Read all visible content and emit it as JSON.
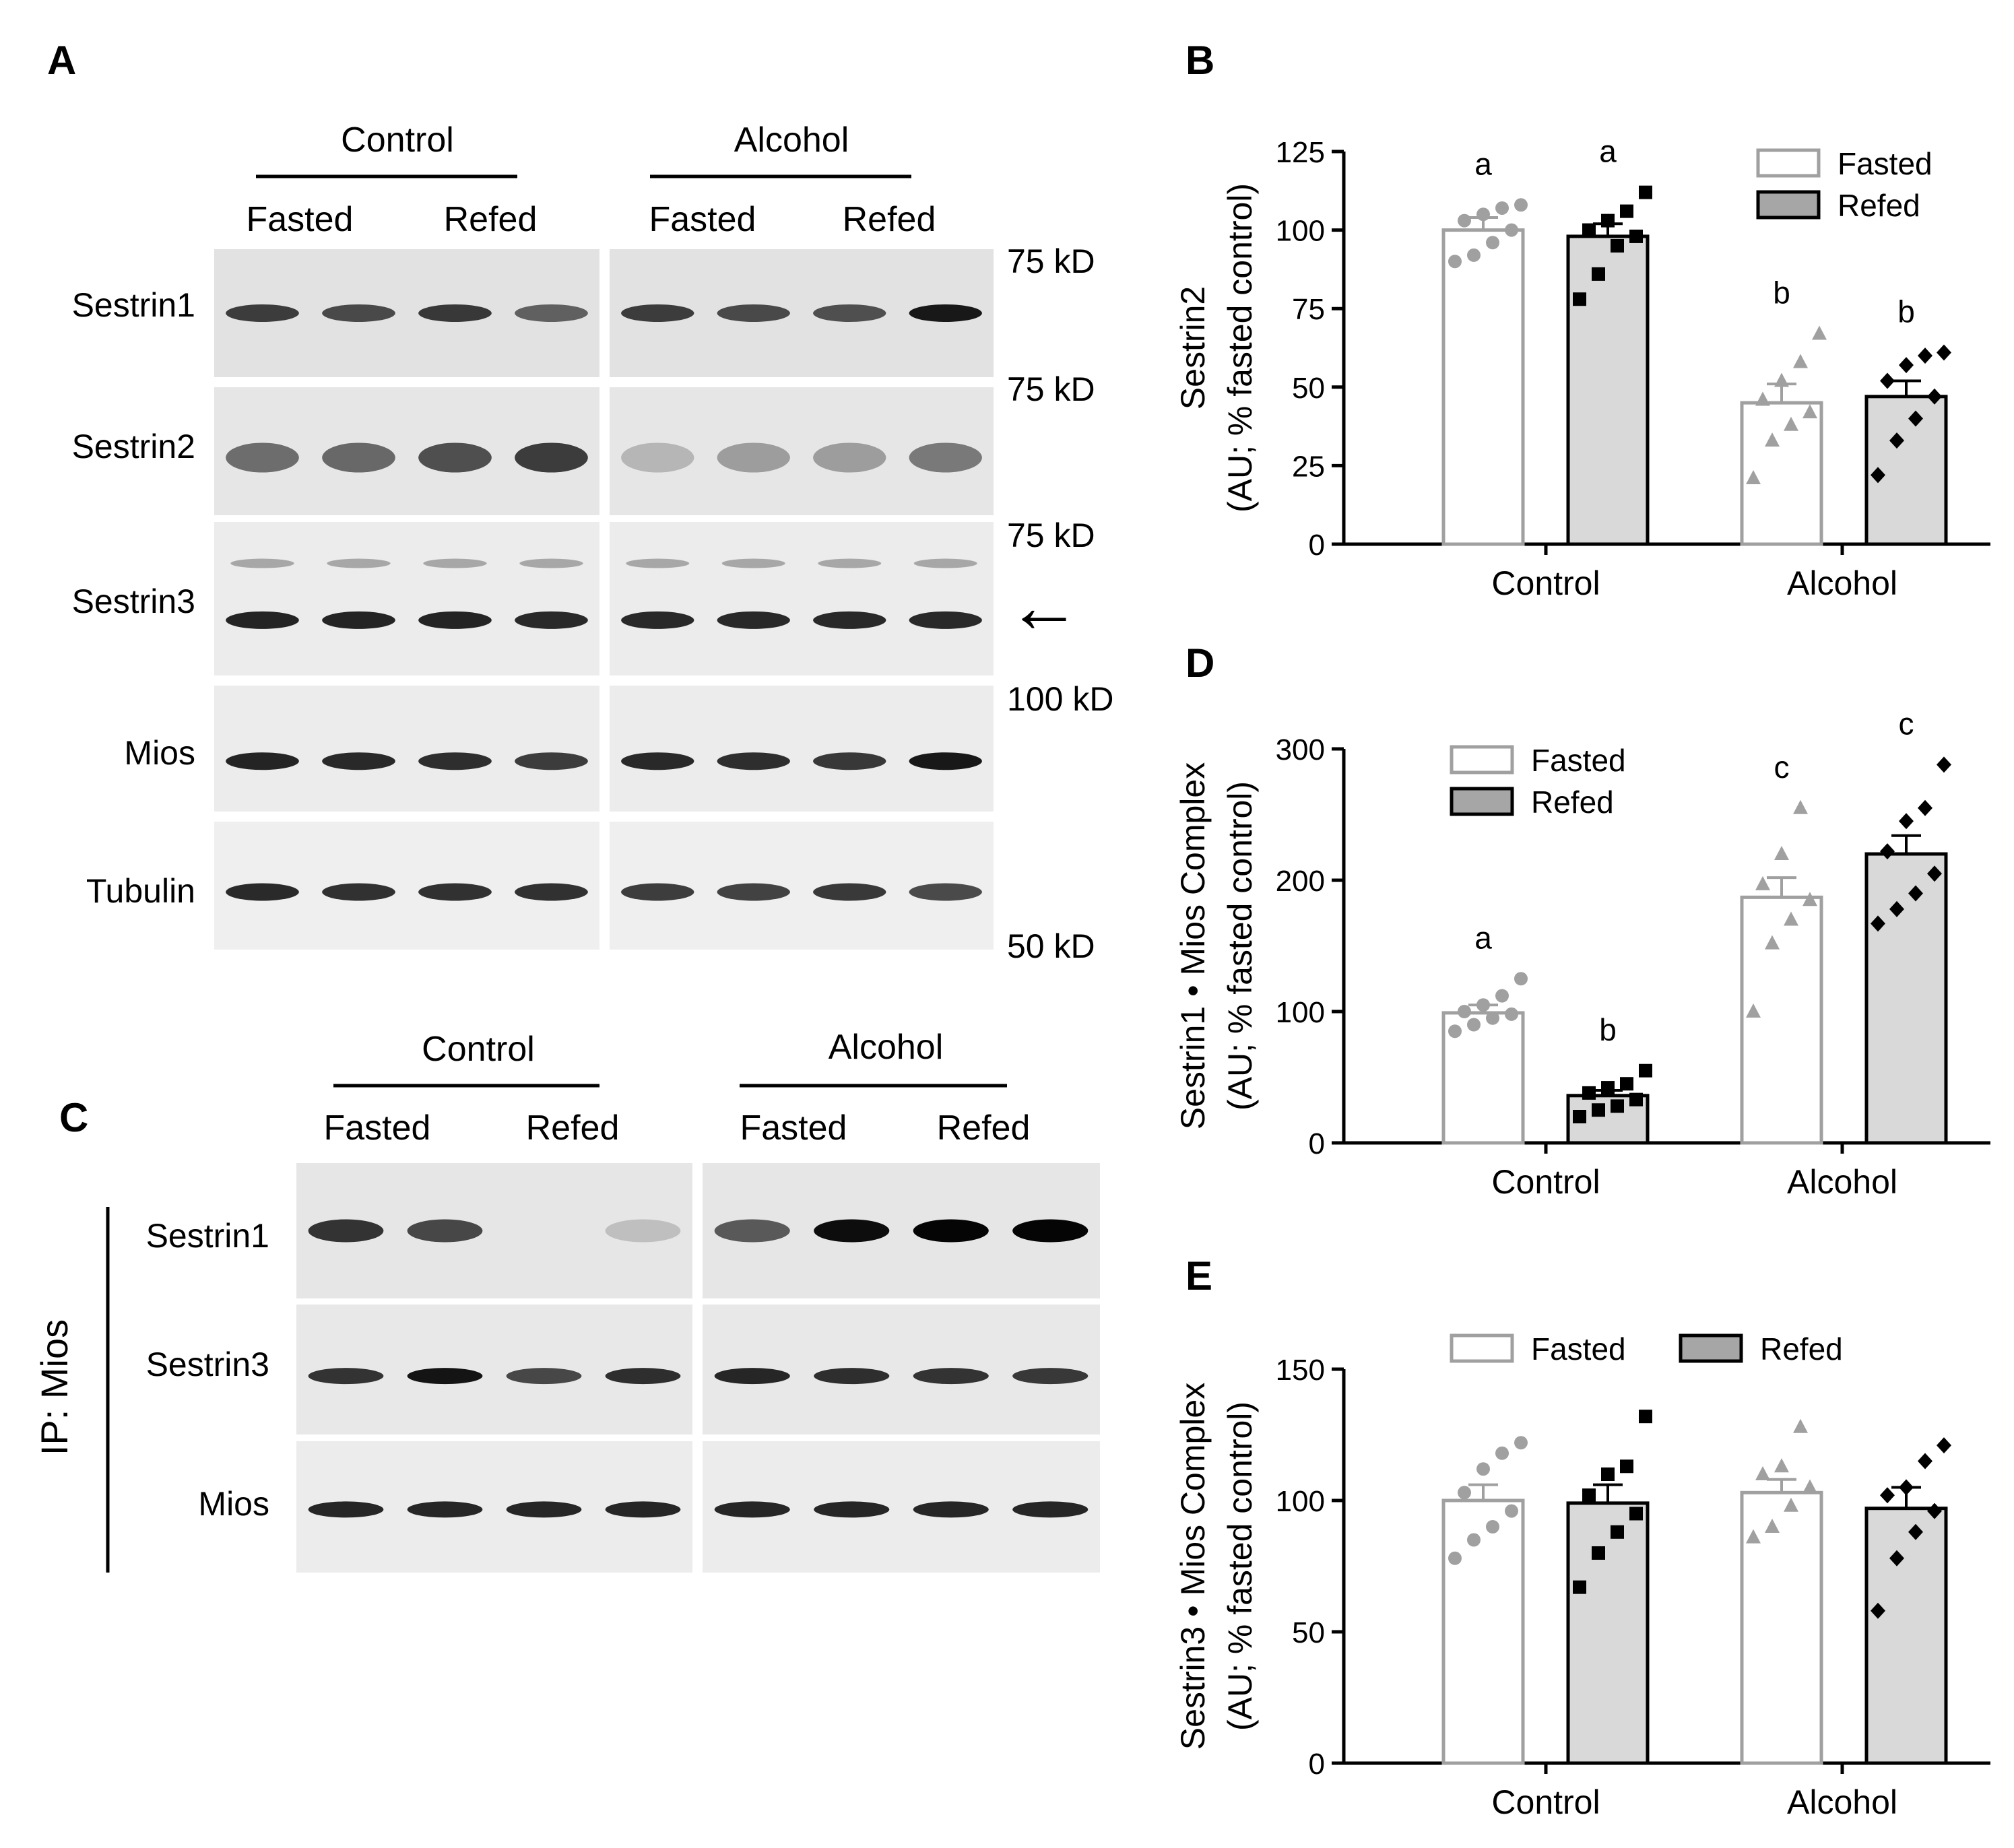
{
  "panel_labels": {
    "A": "A",
    "B": "B",
    "C": "C",
    "D": "D",
    "E": "E"
  },
  "blot_A": {
    "groups": [
      "Control",
      "Alcohol"
    ],
    "conditions": [
      "Fasted",
      "Refed",
      "Fasted",
      "Refed"
    ],
    "rows": [
      "Sestrin1",
      "Sestrin2",
      "Sestrin3",
      "Mios",
      "Tubulin"
    ],
    "markers": [
      "75 kD",
      "75 kD",
      "75 kD",
      "100 kD",
      "50 kD"
    ],
    "arrow": "←",
    "band_intensity": [
      [
        0.8,
        0.75,
        0.82,
        0.65,
        0.8,
        0.75,
        0.72,
        0.95
      ],
      [
        0.6,
        0.62,
        0.72,
        0.8,
        0.3,
        0.4,
        0.4,
        0.55
      ],
      [
        0.9,
        0.9,
        0.9,
        0.88,
        0.88,
        0.88,
        0.88,
        0.88
      ],
      [
        0.9,
        0.88,
        0.86,
        0.8,
        0.88,
        0.86,
        0.82,
        0.95
      ],
      [
        0.88,
        0.85,
        0.85,
        0.85,
        0.8,
        0.78,
        0.82,
        0.75
      ]
    ]
  },
  "blot_C": {
    "groups": [
      "Control",
      "Alcohol"
    ],
    "conditions": [
      "Fasted",
      "Refed",
      "Fasted",
      "Refed"
    ],
    "rows": [
      "Sestrin1",
      "Sestrin3",
      "Mios"
    ],
    "side_label": "IP: Mios",
    "band_intensity": [
      [
        0.8,
        0.72,
        0.1,
        0.25,
        0.65,
        0.95,
        0.98,
        0.98
      ],
      [
        0.8,
        0.92,
        0.72,
        0.82,
        0.85,
        0.82,
        0.8,
        0.78
      ],
      [
        0.85,
        0.85,
        0.85,
        0.85,
        0.85,
        0.85,
        0.85,
        0.85
      ]
    ]
  },
  "legend": {
    "fasted": "Fasted",
    "refed": "Refed"
  },
  "colors": {
    "fasted_fill": "#ffffff",
    "fasted_edge": "#a0a0a0",
    "refed_fill": "#d9d9d9",
    "refed_edge": "#000000",
    "fasted_points": "#a0a0a0",
    "refed_points": "#000000"
  },
  "chart_data": [
    {
      "panel": "B",
      "type": "bar",
      "categories": [
        "Control",
        "Alcohol"
      ],
      "ylabel": [
        "Sestrin2",
        "(AU; % fasted control)"
      ],
      "ylim": [
        0,
        125
      ],
      "yticks": [
        "0",
        "25",
        "50",
        "75",
        "100",
        "125"
      ],
      "legend_position": "top-right",
      "series": [
        {
          "name": "Fasted",
          "values": [
            100,
            45
          ],
          "sem": [
            4,
            6
          ],
          "letters": [
            "a",
            "b"
          ],
          "points": [
            [
              90,
              92,
              96,
              100,
              103,
              105,
              107,
              108
            ],
            [
              21,
              33,
              38,
              42,
              46,
              52,
              58,
              67
            ]
          ],
          "marker": "circle-triangle"
        },
        {
          "name": "Refed",
          "values": [
            98,
            47
          ],
          "sem": [
            4,
            5
          ],
          "letters": [
            "a",
            "b"
          ],
          "points": [
            [
              78,
              86,
              95,
              98,
              100,
              103,
              106,
              112
            ],
            [
              22,
              33,
              40,
              47,
              52,
              57,
              60,
              61
            ]
          ],
          "marker": "square-diamond"
        }
      ]
    },
    {
      "panel": "D",
      "type": "bar",
      "categories": [
        "Control",
        "Alcohol"
      ],
      "ylabel": [
        "Sestrin1 • Mios Complex",
        "(AU; % fasted control)"
      ],
      "ylim": [
        0,
        300
      ],
      "yticks": [
        "0",
        "100",
        "200",
        "300"
      ],
      "legend_position": "top-left",
      "series": [
        {
          "name": "Fasted",
          "values": [
            99,
            187
          ],
          "sem": [
            6,
            15
          ],
          "letters": [
            "a",
            "c"
          ],
          "points": [
            [
              85,
              90,
              95,
              98,
              100,
              105,
              112,
              125
            ],
            [
              100,
              152,
              170,
              185,
              197,
              220,
              255
            ]
          ],
          "marker": "circle-triangle"
        },
        {
          "name": "Refed",
          "values": [
            36,
            220
          ],
          "sem": [
            4,
            14
          ],
          "letters": [
            "b",
            "c"
          ],
          "points": [
            [
              20,
              25,
              28,
              33,
              38,
              42,
              45,
              55
            ],
            [
              167,
              178,
              190,
              205,
              222,
              245,
              255,
              288
            ]
          ],
          "marker": "square-diamond"
        }
      ]
    },
    {
      "panel": "E",
      "type": "bar",
      "categories": [
        "Control",
        "Alcohol"
      ],
      "ylabel": [
        "Sestrin3 • Mios Complex",
        "(AU; % fasted control)"
      ],
      "ylim": [
        0,
        150
      ],
      "yticks": [
        "0",
        "50",
        "100",
        "150"
      ],
      "legend_position": "top",
      "series": [
        {
          "name": "Fasted",
          "values": [
            100,
            103
          ],
          "sem": [
            6,
            5
          ],
          "letters": [],
          "points": [
            [
              78,
              85,
              90,
              96,
              103,
              112,
              118,
              122
            ],
            [
              86,
              90,
              98,
              105,
              110,
              113,
              128
            ]
          ],
          "marker": "circle-triangle"
        },
        {
          "name": "Refed",
          "values": [
            99,
            97
          ],
          "sem": [
            7,
            8
          ],
          "letters": [],
          "points": [
            [
              67,
              80,
              88,
              95,
              102,
              110,
              113,
              132
            ],
            [
              58,
              78,
              88,
              96,
              102,
              105,
              115,
              121
            ]
          ],
          "marker": "square-diamond"
        }
      ]
    }
  ]
}
